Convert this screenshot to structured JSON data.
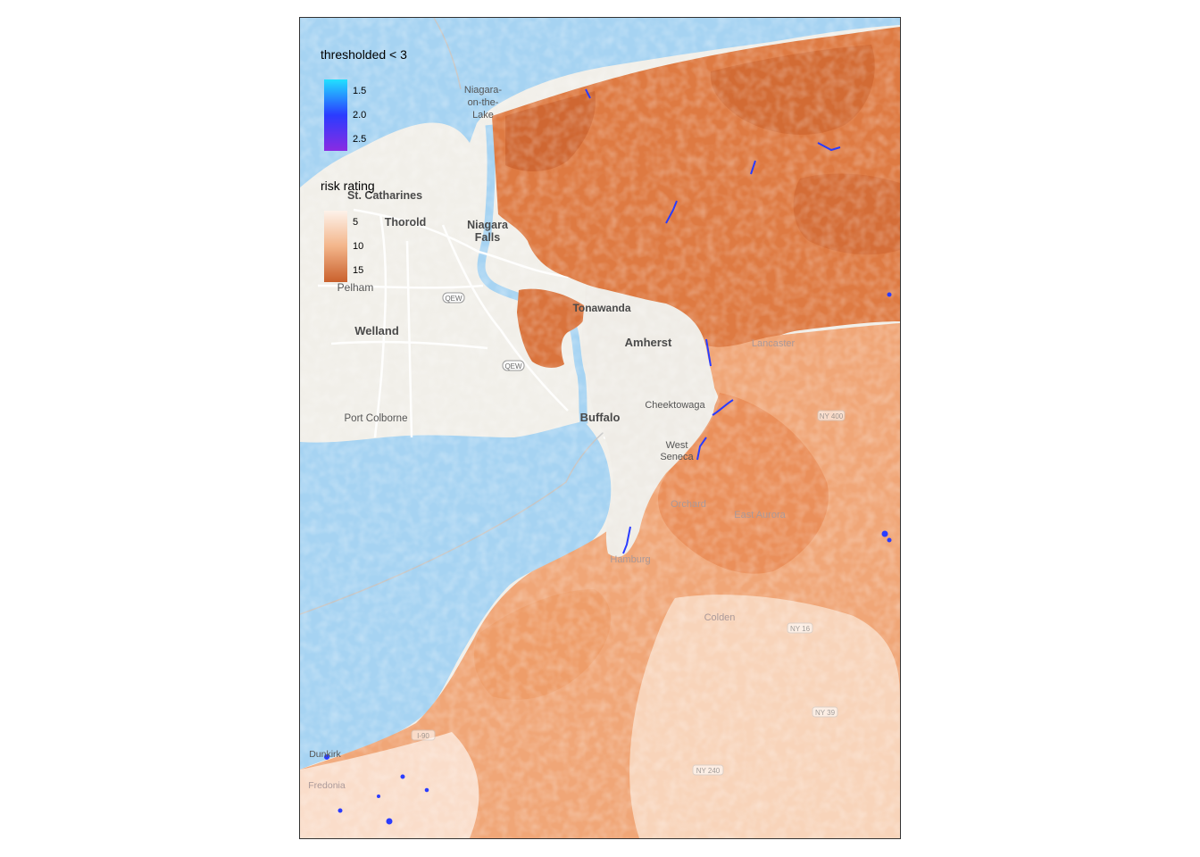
{
  "legend_threshold": {
    "title": "thresholded < 3",
    "ticks": [
      "1.5",
      "2.0",
      "2.5"
    ],
    "colors": [
      "#22e0ff",
      "#2a3cff",
      "#8a2be2"
    ]
  },
  "legend_risk": {
    "title": "risk rating",
    "ticks": [
      "5",
      "10",
      "15"
    ],
    "colors": [
      "#fdf2ea",
      "#f3b58a",
      "#c9602c"
    ]
  },
  "places": {
    "niagara_on_the_lake_1": "Niagara-",
    "niagara_on_the_lake_2": "on-the-",
    "niagara_on_the_lake_3": "Lake",
    "st_catharines": "St. Catharines",
    "thorold": "Thorold",
    "niagara_falls_1": "Niagara",
    "niagara_falls_2": "Falls",
    "pelham": "Pelham",
    "welland": "Welland",
    "tonawanda": "Tonawanda",
    "amherst": "Amherst",
    "cheektowaga": "Cheektowaga",
    "buffalo": "Buffalo",
    "west_seneca_1": "West",
    "west_seneca_2": "Seneca",
    "port_colborne": "Port Colborne",
    "lancaster": "Lancaster",
    "east_aurora": "East Aurora",
    "orchard_park": "Orchard",
    "hamburg": "Hamburg",
    "colden": "Colden",
    "dunkirk": "Dunkirk",
    "fredonia": "Fredonia",
    "qew_1": "QEW",
    "qew_2": "QEW",
    "ny400": "NY 400",
    "ny16": "NY 16",
    "ny39": "NY 39",
    "ny240": "NY 240",
    "i90": "I-90"
  },
  "colors": {
    "water": "#a6d3f2",
    "land": "#f1efe9",
    "risk_high": "#d36a30",
    "risk_mid": "#ec9e6c",
    "risk_low": "#f9dcc6",
    "flag": "#2a3cff"
  }
}
